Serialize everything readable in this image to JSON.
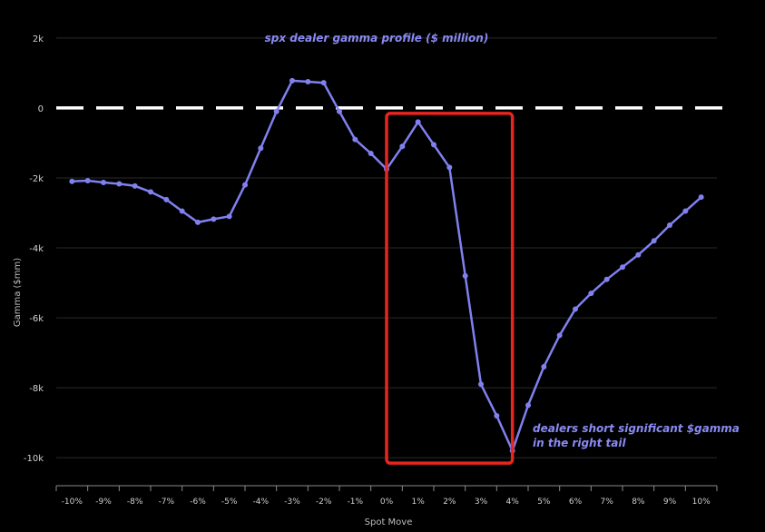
{
  "chart_data": {
    "type": "line",
    "title": "spx dealer gamma profile ($ million)",
    "xlabel": "Spot Move",
    "ylabel": "Gamma ($mm)",
    "categories": [
      "-10%",
      "-9%",
      "-8%",
      "-7%",
      "-6%",
      "-5%",
      "-4%",
      "-3%",
      "-2%",
      "-1%",
      "0%",
      "1%",
      "2%",
      "3%",
      "4%",
      "5%",
      "6%",
      "7%",
      "8%",
      "9%",
      "10%"
    ],
    "x": [
      -10,
      -9.5,
      -9,
      -8.5,
      -8,
      -7.5,
      -7,
      -6.5,
      -6,
      -5.5,
      -5,
      -4.5,
      -4,
      -3.5,
      -3,
      -2.5,
      -2,
      -1.5,
      -1,
      -0.5,
      0,
      0.5,
      1,
      1.5,
      2,
      2.5,
      3,
      3.5,
      4,
      4.5,
      5,
      5.5,
      6,
      6.5,
      7,
      7.5,
      8,
      8.5,
      9,
      9.5,
      10
    ],
    "series": [
      {
        "values": [
          -2100,
          -2080,
          -2130,
          -2170,
          -2230,
          -2400,
          -2620,
          -2950,
          -3270,
          -3180,
          -3100,
          -2200,
          -1150,
          -100,
          780,
          750,
          720,
          -100,
          -900,
          -1300,
          -1750,
          -1100,
          -400,
          -1050,
          -1700,
          -4800,
          -7900,
          -8800,
          -9800,
          -8500,
          -7400,
          -6500,
          -5750,
          -5300,
          -4900,
          -4550,
          -4200,
          -3800,
          -3350,
          -2950,
          -2550
        ],
        "color": "#8080f0"
      }
    ],
    "yticks": [
      "2k",
      "0",
      "-2k",
      "-4k",
      "-6k",
      "-8k",
      "-10k"
    ],
    "ytick_values": [
      2000,
      0,
      -2000,
      -4000,
      -6000,
      -8000,
      -10000
    ],
    "ylim": [
      -10800,
      2100
    ],
    "xlim": [
      -10.5,
      10.5
    ],
    "grid": true,
    "zero_line": {
      "value": 0,
      "color": "#ffffff",
      "style": "dashed"
    },
    "highlight_box": {
      "x": [
        0,
        4
      ],
      "y": [
        -10000,
        0
      ],
      "color": "#e8251e"
    },
    "annotation": {
      "lines": [
        "dealers short significant $gamma",
        "in the right tail"
      ],
      "x": 4.6,
      "y": -9500
    }
  }
}
